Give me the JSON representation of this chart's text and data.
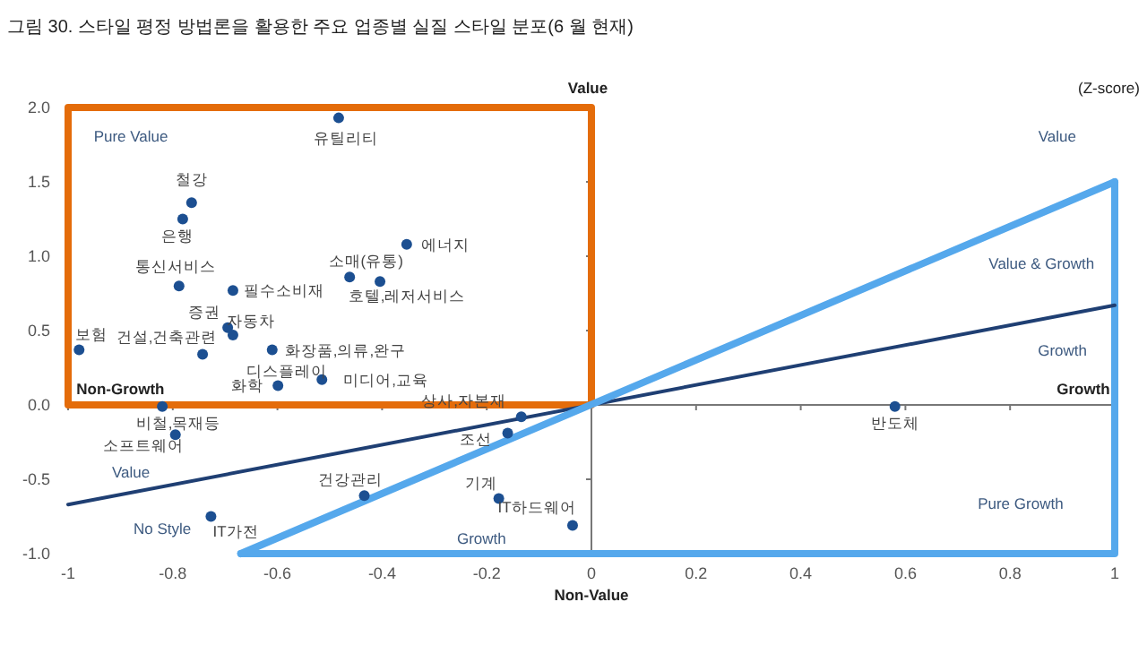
{
  "chart_data": {
    "type": "scatter",
    "title": "그림 30. 스타일 평정 방법론을 활용한 주요 업종별 실질 스타일 분포(6 월 현재)",
    "xlim": [
      -1,
      1
    ],
    "ylim": [
      -1,
      2
    ],
    "xticks": [
      -1,
      -0.8,
      -0.6,
      -0.4,
      -0.2,
      0,
      0.2,
      0.4,
      0.6,
      0.8,
      1
    ],
    "yticks": [
      {
        "value": -1,
        "label": "-1.0"
      },
      {
        "value": -0.5,
        "label": "-0.5"
      },
      {
        "value": 0,
        "label": "0.0"
      },
      {
        "value": 0.5,
        "label": "0.5"
      },
      {
        "value": 1,
        "label": "1.0"
      },
      {
        "value": 1.5,
        "label": "1.5"
      },
      {
        "value": 2,
        "label": "2.0"
      }
    ],
    "series": [
      {
        "type": "line",
        "color": "#1f3f73",
        "x": [
          -1,
          1
        ],
        "values": [
          -0.67,
          0.67
        ]
      },
      {
        "type": "line",
        "color": "#55a8ec",
        "x": [
          -0.67,
          1
        ],
        "values": [
          -1,
          1.5
        ]
      },
      {
        "marker": "circle",
        "color": "#1c4f91",
        "x": [
          -0.483,
          -0.764,
          -0.781,
          -0.353,
          -0.788,
          -0.685,
          -0.462,
          -0.404,
          -0.695,
          -0.685,
          -0.979,
          -0.743,
          -0.61,
          -0.599,
          -0.515,
          -0.82,
          -0.795,
          -0.727,
          -0.434,
          -0.177,
          -0.036,
          -0.134,
          -0.16,
          0.58
        ],
        "values": [
          1.93,
          1.36,
          1.25,
          1.08,
          0.8,
          0.77,
          0.86,
          0.83,
          0.52,
          0.47,
          0.37,
          0.34,
          0.37,
          0.13,
          0.17,
          -0.01,
          -0.2,
          -0.75,
          -0.61,
          -0.63,
          -0.81,
          -0.08,
          -0.19,
          -0.01
        ]
      }
    ],
    "annotations": [
      {
        "text": "유틸리티",
        "x": -0.483,
        "y": 1.93
      },
      {
        "text": "철강",
        "x": -0.764,
        "y": 1.36
      },
      {
        "text": "은행",
        "x": -0.781,
        "y": 1.25
      },
      {
        "text": "에너지",
        "x": -0.353,
        "y": 1.08
      },
      {
        "text": "통신서비스",
        "x": -0.788,
        "y": 0.8
      },
      {
        "text": "필수소비재",
        "x": -0.685,
        "y": 0.77
      },
      {
        "text": "소매(유통)",
        "x": -0.462,
        "y": 0.86
      },
      {
        "text": "호텔,레저서비스",
        "x": -0.404,
        "y": 0.83
      },
      {
        "text": "증권",
        "x": -0.695,
        "y": 0.52
      },
      {
        "text": "자동차",
        "x": -0.685,
        "y": 0.47
      },
      {
        "text": "보험",
        "x": -0.979,
        "y": 0.37
      },
      {
        "text": "건설,건축관련",
        "x": -0.743,
        "y": 0.34
      },
      {
        "text": "화장품,의류,완구",
        "x": -0.61,
        "y": 0.37
      },
      {
        "text": "화학",
        "x": -0.599,
        "y": 0.13
      },
      {
        "text": "미디어,교육",
        "x": -0.515,
        "y": 0.17
      },
      {
        "text": "비철,목재등",
        "x": -0.82,
        "y": -0.01
      },
      {
        "text": "소프트웨어",
        "x": -0.795,
        "y": -0.2
      },
      {
        "text": "IT가전",
        "x": -0.727,
        "y": -0.75
      },
      {
        "text": "건강관리",
        "x": -0.434,
        "y": -0.61
      },
      {
        "text": "기계",
        "x": -0.177,
        "y": -0.63
      },
      {
        "text": "IT하드웨어",
        "x": -0.036,
        "y": -0.81
      },
      {
        "text": "상사,자본재",
        "x": -0.134,
        "y": -0.08
      },
      {
        "text": "조선",
        "x": -0.16,
        "y": -0.19
      },
      {
        "text": "반도체",
        "x": 0.58,
        "y": -0.01
      },
      "Pure Value",
      "Non-Growth",
      "Value",
      "No Style",
      "Growth",
      "Value",
      "Value & Growth",
      "Growth",
      "Growth",
      "Pure Growth",
      "디스플레이",
      "Value",
      "Non-Value",
      "(Z-score)"
    ]
  }
}
